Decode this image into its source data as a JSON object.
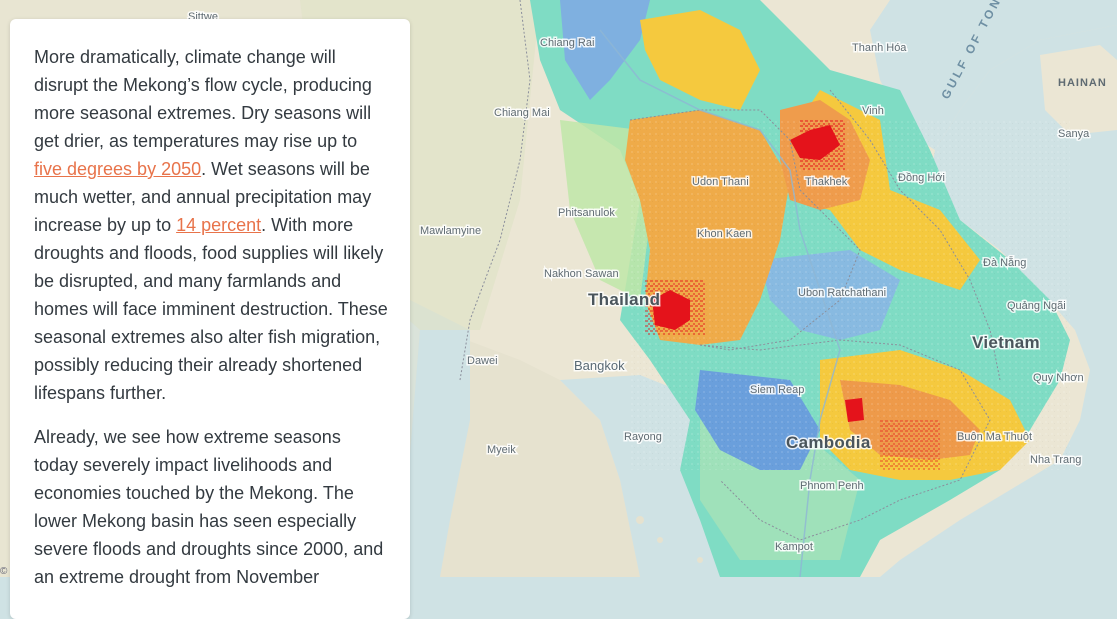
{
  "map": {
    "countries": [
      "Thailand",
      "Cambodia",
      "Vietnam"
    ],
    "water_labels": [
      "GULF OF TONKIN",
      "HAINAN"
    ],
    "places": [
      "Sittwe",
      "Chiang Rai",
      "Chiang Mai",
      "Thanh Hóa",
      "Vinh",
      "Sanya",
      "Udon Thani",
      "Thakhek",
      "Đồng Hới",
      "Phitsanulok",
      "Mawlamyine",
      "Khon Kaen",
      "Nakhon Sawan",
      "Ubon Ratchathani",
      "Đà Nẵng",
      "Quảng Ngãi",
      "Dawei",
      "Bangkok",
      "Quy Nhơn",
      "Siem Reap",
      "Rayong",
      "Myeik",
      "Buôn Ma Thuột",
      "Nha Trang",
      "Phnom Penh",
      "Kampot"
    ],
    "colors": {
      "land": "#ebe6d4",
      "sea": "#cfe2e4",
      "hot_red": "#e4131b",
      "warm_orange": "#efab49",
      "yellow": "#f5c93e",
      "cool_teal": "#7fdcc4",
      "cool_blue": "#7fb0e0"
    }
  },
  "article": {
    "p1_text1": "More dramatically, climate change will disrupt the Mekong’s flow cycle, producing more seasonal extremes. Dry seasons will get drier, as temperatures may rise up to ",
    "p1_link1": "five degrees by 2050",
    "p1_text2": ". Wet seasons will be much wetter, and annual precipitation may increase by up to ",
    "p1_link2": "14 percent",
    "p1_text3": ". With more droughts and floods, food supplies will likely be disrupted, and many farmlands and homes will face imminent destruction. These seasonal extremes also alter fish migration, possibly reducing their already shortened lifespans further.",
    "p2_text": "Already, we see how extreme seasons today severely impact livelihoods and economies touched by the Mekong. The lower Mekong basin has seen especially severe floods and droughts since 2000, and an extreme drought from November"
  },
  "attribution": "©"
}
